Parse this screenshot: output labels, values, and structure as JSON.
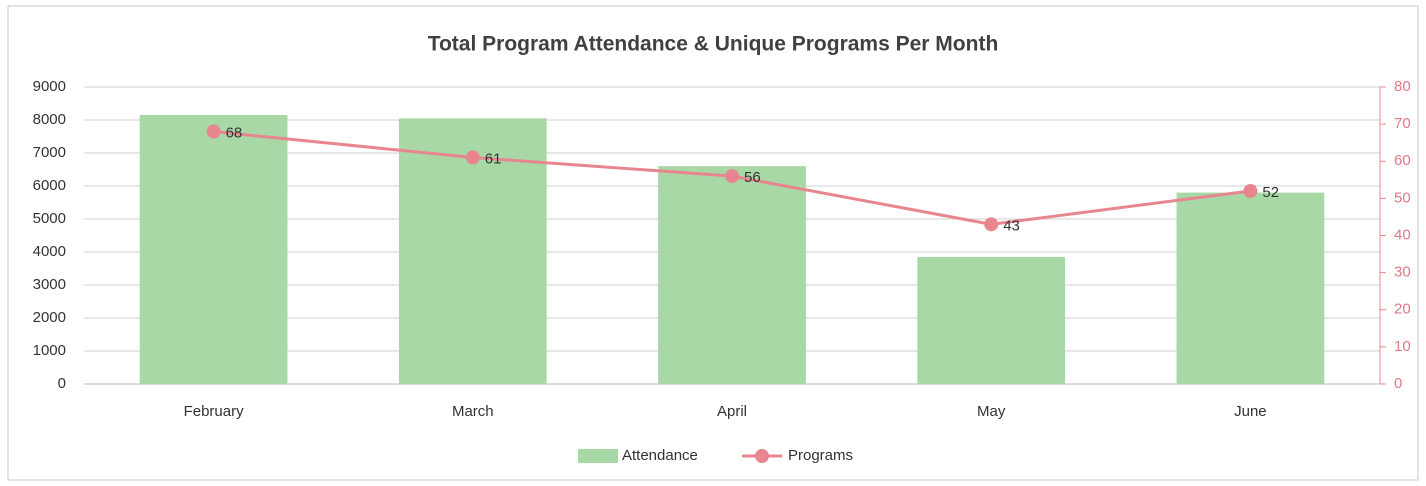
{
  "chart_data": {
    "type": "bar",
    "title": "Total Program Attendance & Unique Programs Per Month",
    "categories": [
      "February",
      "March",
      "April",
      "May",
      "June"
    ],
    "series": [
      {
        "name": "Attendance",
        "color": "#a8d8a6",
        "values": [
          8150,
          8050,
          6600,
          3850,
          5800
        ]
      },
      {
        "name": "Programs",
        "color": "#e8868f",
        "type": "line",
        "axis": "y2",
        "values": [
          68,
          61,
          56,
          43,
          52
        ]
      }
    ],
    "ylim": [
      0,
      9000
    ],
    "yticks": [
      0,
      1000,
      2000,
      3000,
      4000,
      5000,
      6000,
      7000,
      8000,
      9000
    ],
    "y2lim": [
      0,
      80
    ],
    "y2ticks": [
      0,
      10,
      20,
      30,
      40,
      50,
      60,
      70,
      80
    ],
    "grid": true,
    "legend": "bottom"
  }
}
